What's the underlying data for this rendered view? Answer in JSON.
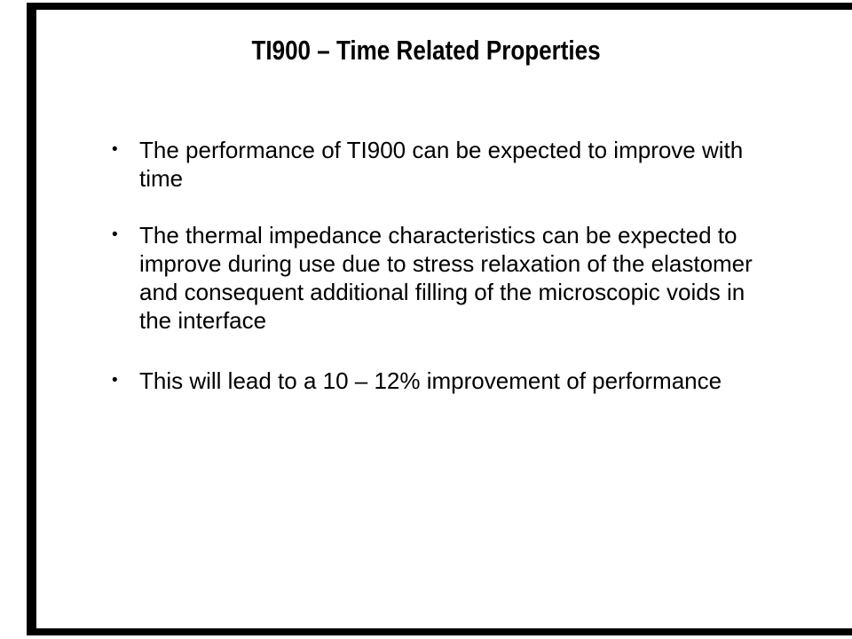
{
  "slide": {
    "title": "TI900 – Time Related Properties",
    "bullet_glyph": "•",
    "bullets": [
      {
        "lines": [
          "The performance of TI900 can be expected to improve with",
          "time"
        ]
      },
      {
        "lines": [
          "The thermal impedance characteristics can be expected to",
          "improve during use due to stress relaxation of the elastomer",
          "and consequent additional filling of the microscopic voids in",
          "the interface"
        ]
      },
      {
        "lines": [
          "This will lead to a 10 – 12% improvement of performance"
        ]
      }
    ]
  },
  "colors": {
    "background": "#ffffff",
    "text": "#000000",
    "frame": "#000000"
  }
}
